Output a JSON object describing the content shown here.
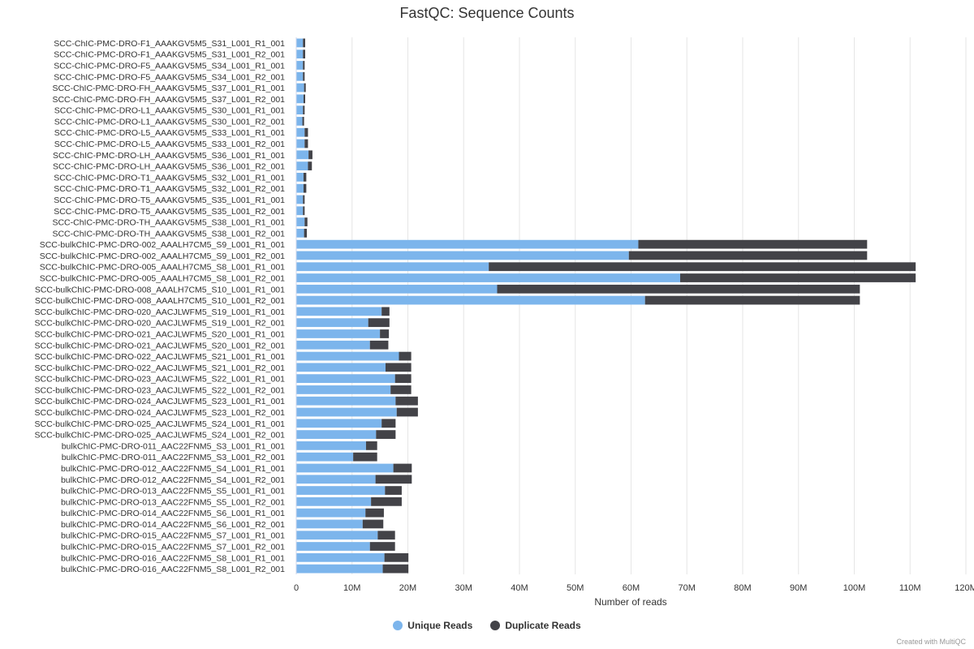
{
  "chart_data": {
    "type": "bar",
    "orientation": "horizontal",
    "stacked": true,
    "title": "FastQC: Sequence Counts",
    "xlabel": "Number of reads",
    "xlim": [
      0,
      120000000
    ],
    "xticks": [
      0,
      10000000,
      20000000,
      30000000,
      40000000,
      50000000,
      60000000,
      70000000,
      80000000,
      90000000,
      100000000,
      110000000,
      120000000
    ],
    "xtick_labels": [
      "0",
      "10M",
      "20M",
      "30M",
      "40M",
      "50M",
      "60M",
      "70M",
      "80M",
      "90M",
      "100M",
      "110M",
      "120M"
    ],
    "grid": true,
    "legend_position": "bottom-center",
    "categories": [
      "SCC-ChIC-PMC-DRO-F1_AAAKGV5M5_S31_L001_R1_001",
      "SCC-ChIC-PMC-DRO-F1_AAAKGV5M5_S31_L001_R2_001",
      "SCC-ChIC-PMC-DRO-F5_AAAKGV5M5_S34_L001_R1_001",
      "SCC-ChIC-PMC-DRO-F5_AAAKGV5M5_S34_L001_R2_001",
      "SCC-ChIC-PMC-DRO-FH_AAAKGV5M5_S37_L001_R1_001",
      "SCC-ChIC-PMC-DRO-FH_AAAKGV5M5_S37_L001_R2_001",
      "SCC-ChIC-PMC-DRO-L1_AAAKGV5M5_S30_L001_R1_001",
      "SCC-ChIC-PMC-DRO-L1_AAAKGV5M5_S30_L001_R2_001",
      "SCC-ChIC-PMC-DRO-L5_AAAKGV5M5_S33_L001_R1_001",
      "SCC-ChIC-PMC-DRO-L5_AAAKGV5M5_S33_L001_R2_001",
      "SCC-ChIC-PMC-DRO-LH_AAAKGV5M5_S36_L001_R1_001",
      "SCC-ChIC-PMC-DRO-LH_AAAKGV5M5_S36_L001_R2_001",
      "SCC-ChIC-PMC-DRO-T1_AAAKGV5M5_S32_L001_R1_001",
      "SCC-ChIC-PMC-DRO-T1_AAAKGV5M5_S32_L001_R2_001",
      "SCC-ChIC-PMC-DRO-T5_AAAKGV5M5_S35_L001_R1_001",
      "SCC-ChIC-PMC-DRO-T5_AAAKGV5M5_S35_L001_R2_001",
      "SCC-ChIC-PMC-DRO-TH_AAAKGV5M5_S38_L001_R1_001",
      "SCC-ChIC-PMC-DRO-TH_AAAKGV5M5_S38_L001_R2_001",
      "SCC-bulkChIC-PMC-DRO-002_AAALH7CM5_S9_L001_R1_001",
      "SCC-bulkChIC-PMC-DRO-002_AAALH7CM5_S9_L001_R2_001",
      "SCC-bulkChIC-PMC-DRO-005_AAALH7CM5_S8_L001_R1_001",
      "SCC-bulkChIC-PMC-DRO-005_AAALH7CM5_S8_L001_R2_001",
      "SCC-bulkChIC-PMC-DRO-008_AAALH7CM5_S10_L001_R1_001",
      "SCC-bulkChIC-PMC-DRO-008_AAALH7CM5_S10_L001_R2_001",
      "SCC-bulkChIC-PMC-DRO-020_AACJLWFM5_S19_L001_R1_001",
      "SCC-bulkChIC-PMC-DRO-020_AACJLWFM5_S19_L001_R2_001",
      "SCC-bulkChIC-PMC-DRO-021_AACJLWFM5_S20_L001_R1_001",
      "SCC-bulkChIC-PMC-DRO-021_AACJLWFM5_S20_L001_R2_001",
      "SCC-bulkChIC-PMC-DRO-022_AACJLWFM5_S21_L001_R1_001",
      "SCC-bulkChIC-PMC-DRO-022_AACJLWFM5_S21_L001_R2_001",
      "SCC-bulkChIC-PMC-DRO-023_AACJLWFM5_S22_L001_R1_001",
      "SCC-bulkChIC-PMC-DRO-023_AACJLWFM5_S22_L001_R2_001",
      "SCC-bulkChIC-PMC-DRO-024_AACJLWFM5_S23_L001_R1_001",
      "SCC-bulkChIC-PMC-DRO-024_AACJLWFM5_S23_L001_R2_001",
      "SCC-bulkChIC-PMC-DRO-025_AACJLWFM5_S24_L001_R1_001",
      "SCC-bulkChIC-PMC-DRO-025_AACJLWFM5_S24_L001_R2_001",
      "bulkChIC-PMC-DRO-011_AAC22FNM5_S3_L001_R1_001",
      "bulkChIC-PMC-DRO-011_AAC22FNM5_S3_L001_R2_001",
      "bulkChIC-PMC-DRO-012_AAC22FNM5_S4_L001_R1_001",
      "bulkChIC-PMC-DRO-012_AAC22FNM5_S4_L001_R2_001",
      "bulkChIC-PMC-DRO-013_AAC22FNM5_S5_L001_R1_001",
      "bulkChIC-PMC-DRO-013_AAC22FNM5_S5_L001_R2_001",
      "bulkChIC-PMC-DRO-014_AAC22FNM5_S6_L001_R1_001",
      "bulkChIC-PMC-DRO-014_AAC22FNM5_S6_L001_R2_001",
      "bulkChIC-PMC-DRO-015_AAC22FNM5_S7_L001_R1_001",
      "bulkChIC-PMC-DRO-015_AAC22FNM5_S7_L001_R2_001",
      "bulkChIC-PMC-DRO-016_AAC22FNM5_S8_L001_R1_001",
      "bulkChIC-PMC-DRO-016_AAC22FNM5_S8_L001_R2_001"
    ],
    "series": [
      {
        "name": "Unique Reads",
        "color": "#7cb5ec",
        "values": [
          1200000,
          1200000,
          1200000,
          1200000,
          1400000,
          1300000,
          1200000,
          1100000,
          1500000,
          1500000,
          2200000,
          2100000,
          1300000,
          1300000,
          1200000,
          1200000,
          1500000,
          1400000,
          61300000,
          59600000,
          34500000,
          68800000,
          36000000,
          62500000,
          15300000,
          12900000,
          15000000,
          13200000,
          18400000,
          16000000,
          17700000,
          16900000,
          17800000,
          18000000,
          15300000,
          14300000,
          12500000,
          10200000,
          17400000,
          14200000,
          15900000,
          13400000,
          12400000,
          11900000,
          14600000,
          13200000,
          15800000,
          15500000
        ]
      },
      {
        "name": "Duplicate Reads",
        "color": "#434348",
        "values": [
          400000,
          400000,
          300000,
          300000,
          300000,
          300000,
          300000,
          300000,
          600000,
          600000,
          700000,
          700000,
          500000,
          500000,
          300000,
          300000,
          500000,
          500000,
          41000000,
          42700000,
          76500000,
          42200000,
          65000000,
          38500000,
          1400000,
          3800000,
          1600000,
          3300000,
          2200000,
          4600000,
          2900000,
          3700000,
          4000000,
          3800000,
          2500000,
          3500000,
          2000000,
          4300000,
          3300000,
          6500000,
          3000000,
          5500000,
          3300000,
          3700000,
          3100000,
          4500000,
          4300000,
          4600000
        ]
      }
    ]
  },
  "legend": {
    "unique_label": "Unique Reads",
    "duplicate_label": "Duplicate Reads"
  },
  "credit": "Created with MultiQC"
}
